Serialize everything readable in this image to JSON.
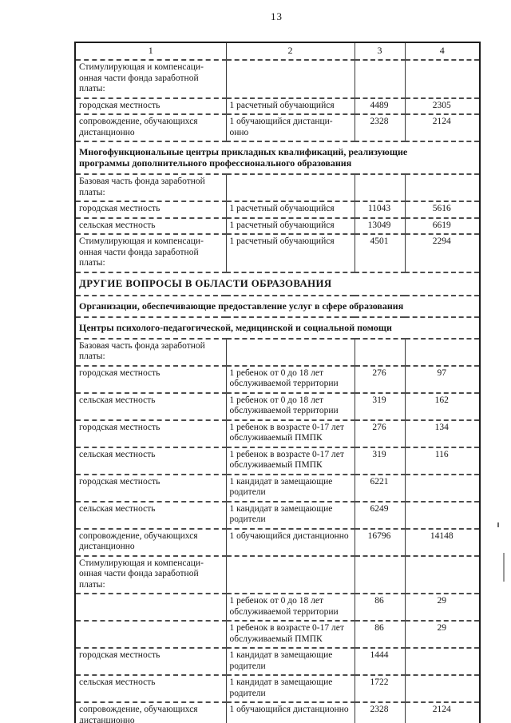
{
  "page": {
    "number": "13"
  },
  "table": {
    "column_headers": [
      "1",
      "2",
      "3",
      "4"
    ],
    "rows": [
      {
        "type": "data",
        "cells": [
          "Стимулирующая и компенсаци-онная части фонда заработной платы:",
          "",
          "",
          ""
        ]
      },
      {
        "type": "data",
        "cells": [
          "городская местность",
          "1 расчетный обучающийся",
          "4489",
          "2305"
        ]
      },
      {
        "type": "data",
        "cells": [
          "сопровождение, обучающихся дистанционно",
          "1 обучающийся дистанци-онно",
          "2328",
          "2124"
        ]
      },
      {
        "type": "section",
        "level": 2,
        "text": "Многофункциональные центры прикладных квалификаций, реализующие программы дополнительного профессионального образования"
      },
      {
        "type": "data",
        "cells": [
          "Базовая  часть фонда заработной платы:",
          "",
          "",
          ""
        ]
      },
      {
        "type": "data",
        "cells": [
          "городская местность",
          "1 расчетный обучающийся",
          "11043",
          "5616"
        ]
      },
      {
        "type": "data",
        "cells": [
          "сельская местность",
          "1 расчетный обучающийся",
          "13049",
          "6619"
        ]
      },
      {
        "type": "data",
        "cells": [
          "Стимулирующая и компенсаци-онная части фонда заработной платы:",
          "1 расчетный обучающийся",
          "4501",
          "2294"
        ]
      },
      {
        "type": "section",
        "level": 1,
        "text": "ДРУГИЕ ВОПРОСЫ В ОБЛАСТИ ОБРАЗОВАНИЯ"
      },
      {
        "type": "section",
        "level": 2,
        "text": "Организации, обеспечивающие предоставление услуг в сфере образования"
      },
      {
        "type": "section",
        "level": 2,
        "text": "Центры психолого-педагогической, медицинской и социальной помощи"
      },
      {
        "type": "data",
        "cells": [
          "Базовая  часть фонда заработной платы:",
          "",
          "",
          ""
        ]
      },
      {
        "type": "data",
        "cells": [
          "городская местность",
          "1 ребенок от 0 до 18 лет обслуживаемой территории",
          "276",
          "97"
        ]
      },
      {
        "type": "data",
        "cells": [
          "сельская местность",
          "1 ребенок от 0 до 18 лет обслуживаемой территории",
          "319",
          "162"
        ]
      },
      {
        "type": "data",
        "cells": [
          "городская местность",
          "1 ребенок в возрасте 0-17 лет обслуживаемый ПМПК",
          "276",
          "134"
        ]
      },
      {
        "type": "data",
        "cells": [
          "сельская местность",
          "1 ребенок в возрасте 0-17 лет обслуживаемый ПМПК",
          "319",
          "116"
        ]
      },
      {
        "type": "data",
        "cells": [
          "городская местность",
          "1 кандидат в замещающие родители",
          "6221",
          ""
        ]
      },
      {
        "type": "data",
        "cells": [
          "сельская местность",
          "1 кандидат в замещающие родители",
          "6249",
          ""
        ]
      },
      {
        "type": "data",
        "cells": [
          "сопровождение, обучающихся дистанционно",
          "1 обучающийся дистанционно",
          "16796",
          "14148"
        ]
      },
      {
        "type": "data",
        "cells": [
          "Стимулирующая и компенсаци-онная части фонда заработной платы:",
          "",
          "",
          ""
        ]
      },
      {
        "type": "data",
        "cells": [
          "",
          "1 ребенок от 0 до 18 лет обслуживаемой территории",
          "86",
          "29"
        ]
      },
      {
        "type": "data",
        "cells": [
          "",
          "1 ребенок в возрасте 0-17 лет обслуживаемый ПМПК",
          "86",
          "29"
        ]
      },
      {
        "type": "data",
        "cells": [
          "городская местность",
          "1 кандидат в замещающие родители",
          "1444",
          ""
        ]
      },
      {
        "type": "data",
        "cells": [
          "сельская местность",
          "1 кандидат в замещающие родители",
          "1722",
          ""
        ]
      },
      {
        "type": "data",
        "cells": [
          "сопровождение, обучающихся дистанционно",
          "1 обучающийся дистанционно",
          "2328",
          "2124"
        ]
      }
    ]
  }
}
